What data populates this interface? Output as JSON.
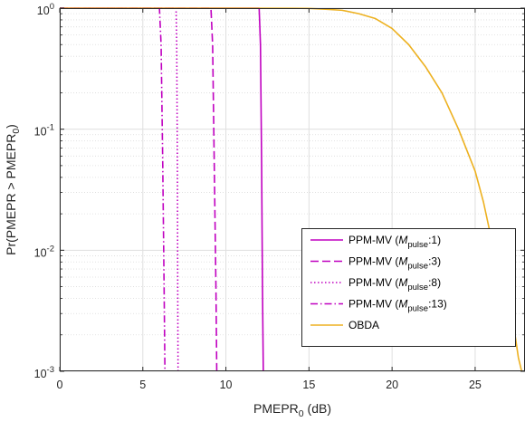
{
  "chart_data": {
    "type": "line",
    "xlabel": {
      "main": "PMEPR",
      "sub": "0",
      "suffix": " (dB)"
    },
    "ylabel": {
      "main": "Pr(PMEPR > PMEPR",
      "sub": "0",
      "suffix": ")"
    },
    "xlim": [
      0,
      28
    ],
    "ylim": [
      0.001,
      1
    ],
    "yscale": "log",
    "grid": true,
    "legend_position": "bottom-right",
    "x_ticks": [
      {
        "value": 0,
        "label": "0"
      },
      {
        "value": 5,
        "label": "5"
      },
      {
        "value": 10,
        "label": "10"
      },
      {
        "value": 15,
        "label": "15"
      },
      {
        "value": 20,
        "label": "20"
      },
      {
        "value": 25,
        "label": "25"
      }
    ],
    "y_ticks": [
      {
        "value": 1,
        "base": "10",
        "exp": "0"
      },
      {
        "value": 0.1,
        "base": "10",
        "exp": "-1"
      },
      {
        "value": 0.01,
        "base": "10",
        "exp": "-2"
      },
      {
        "value": 0.001,
        "base": "10",
        "exp": "-3"
      }
    ],
    "series": [
      {
        "key": "m1",
        "legend": {
          "prefix": "PPM-MV (",
          "italic": "M",
          "sub": "pulse",
          "suffix": ":1)"
        },
        "color": "#c000c0",
        "dash": "solid",
        "x": [
          0,
          12.0,
          12.08,
          12.15,
          12.2,
          12.25
        ],
        "y": [
          1,
          1,
          0.5,
          0.05,
          0.005,
          0.001
        ]
      },
      {
        "key": "m3",
        "legend": {
          "prefix": "PPM-MV (",
          "italic": "M",
          "sub": "pulse",
          "suffix": ":3)"
        },
        "color": "#c000c0",
        "dash": "dashed",
        "x": [
          0,
          9.1,
          9.2,
          9.3,
          9.4,
          9.45
        ],
        "y": [
          1,
          1,
          0.5,
          0.05,
          0.005,
          0.001
        ]
      },
      {
        "key": "m8",
        "legend": {
          "prefix": "PPM-MV (",
          "italic": "M",
          "sub": "pulse",
          "suffix": ":8)"
        },
        "color": "#c000c0",
        "dash": "dotted",
        "x": [
          0,
          7.0,
          7.04,
          7.08,
          7.1,
          7.12
        ],
        "y": [
          1,
          1,
          0.5,
          0.05,
          0.005,
          0.001
        ]
      },
      {
        "key": "m13",
        "legend": {
          "prefix": "PPM-MV (",
          "italic": "M",
          "sub": "pulse",
          "suffix": ":13)"
        },
        "color": "#c000c0",
        "dash": "dashdot",
        "x": [
          0,
          6.0,
          6.1,
          6.2,
          6.28,
          6.33
        ],
        "y": [
          1,
          1,
          0.5,
          0.05,
          0.005,
          0.001
        ]
      },
      {
        "key": "obda",
        "legend": {
          "prefix": "OBDA",
          "italic": "",
          "sub": "",
          "suffix": ""
        },
        "color": "#edb120",
        "dash": "solid",
        "x": [
          0,
          10,
          14,
          15,
          16,
          17,
          18,
          19,
          20,
          21,
          22,
          23,
          24,
          25,
          25.5,
          26,
          26.5,
          27,
          27.2,
          27.4,
          27.6,
          27.8
        ],
        "y": [
          1,
          1,
          0.998,
          0.995,
          0.98,
          0.96,
          0.9,
          0.82,
          0.68,
          0.5,
          0.33,
          0.2,
          0.1,
          0.045,
          0.025,
          0.012,
          0.007,
          0.004,
          0.003,
          0.002,
          0.0013,
          0.001
        ]
      }
    ]
  }
}
